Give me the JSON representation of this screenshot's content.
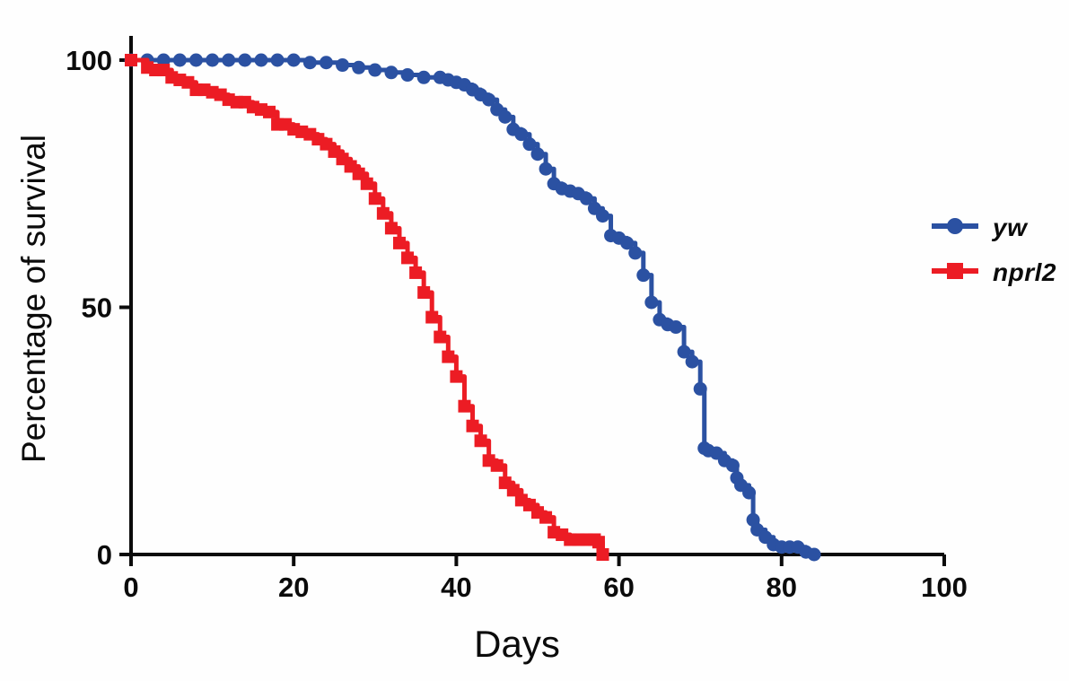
{
  "figure": {
    "background": "#fefefe"
  },
  "chart_data": {
    "type": "line",
    "subtype": "kaplan-meier-survival-step",
    "title": "",
    "xlabel": "Days",
    "ylabel": "Percentage of survival",
    "xlim": [
      0,
      100
    ],
    "ylim": [
      0,
      100
    ],
    "xticks": [
      0,
      20,
      40,
      60,
      80,
      100
    ],
    "yticks": [
      0,
      50,
      100
    ],
    "grid": false,
    "legend_position": "right",
    "axis_color": "#0b0b0b",
    "series": [
      {
        "name": "yw",
        "color": "#2B51A2",
        "marker": "circle",
        "x": [
          0,
          2,
          4,
          6,
          8,
          10,
          12,
          14,
          16,
          18,
          20,
          22,
          24,
          26,
          28,
          30,
          32,
          34,
          36,
          38,
          39,
          40,
          41,
          42,
          43,
          44,
          45,
          46,
          47,
          48,
          49,
          50,
          51,
          52,
          53,
          54,
          55,
          56,
          57,
          58,
          59,
          60,
          61,
          62,
          63,
          64,
          65,
          66,
          67,
          68,
          69,
          70,
          70.5,
          71,
          72,
          73,
          74,
          74.5,
          75,
          76,
          76.5,
          77,
          78,
          79,
          80,
          81,
          82,
          83,
          84
        ],
        "y": [
          100,
          100,
          100,
          100,
          100,
          100,
          100,
          100,
          100,
          100,
          100,
          99.5,
          99.5,
          99,
          98.5,
          98,
          97.5,
          97,
          96.5,
          96.5,
          96,
          95.5,
          95,
          94,
          93,
          92,
          90,
          88.5,
          86,
          85,
          83,
          81,
          78,
          75,
          74,
          73.5,
          73,
          72,
          70,
          68.5,
          64.5,
          64,
          63,
          61,
          56.5,
          51,
          47.5,
          46.5,
          46,
          41,
          39,
          33.5,
          21.5,
          21,
          20.5,
          19,
          18,
          15.5,
          14,
          12.5,
          7,
          5,
          3.5,
          2,
          1.5,
          1.5,
          1.5,
          0.5,
          0
        ]
      },
      {
        "name": "nprl2",
        "color": "#EC1C24",
        "marker": "square",
        "x": [
          0,
          2,
          3,
          4,
          5,
          6,
          7,
          8,
          9,
          10,
          11,
          12,
          13,
          14,
          15,
          16,
          17,
          18,
          19,
          20,
          21,
          22,
          23,
          24,
          25,
          26,
          27,
          28,
          29,
          30,
          31,
          32,
          33,
          34,
          35,
          36,
          37,
          38,
          39,
          40,
          41,
          42,
          43,
          44,
          45,
          46,
          47,
          48,
          49,
          50,
          51,
          52,
          53,
          54,
          55,
          56,
          57,
          57.5,
          58
        ],
        "y": [
          100,
          98.5,
          98,
          98,
          96.5,
          96,
          95.5,
          94,
          94,
          93.5,
          93,
          92,
          91.5,
          91.5,
          90.5,
          90,
          89.5,
          87,
          87,
          86,
          85.5,
          85,
          84,
          83,
          81.5,
          80,
          78.5,
          77,
          75,
          72,
          69,
          66,
          63,
          60,
          57,
          53,
          48,
          44,
          40,
          36,
          30,
          26,
          23,
          19,
          18,
          14.5,
          13,
          11,
          10,
          8.5,
          7.5,
          4.5,
          4,
          3,
          3,
          3,
          3,
          2.5,
          0
        ]
      }
    ]
  },
  "legend": {
    "items": [
      {
        "label": "yw",
        "color": "#2B51A2",
        "marker": "circle"
      },
      {
        "label": "nprl2",
        "color": "#EC1C24",
        "marker": "square"
      }
    ]
  }
}
